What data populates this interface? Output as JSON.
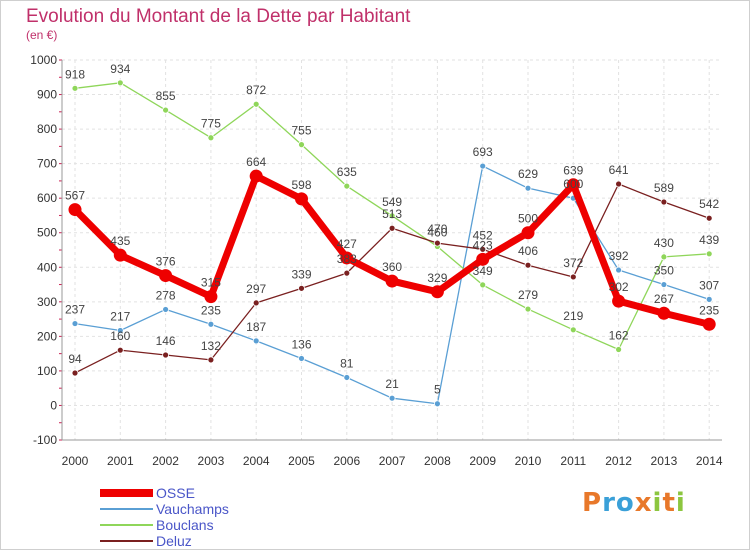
{
  "header": {
    "title": "Evolution du Montant de la Dette par Habitant",
    "unit": "(en €)"
  },
  "logo": {
    "text": "Proxiti",
    "letter_colors": [
      "#e8782a",
      "#3aa0d8",
      "#3aa0d8",
      "#e8782a",
      "#8cc63f",
      "#e8782a",
      "#8cc63f"
    ]
  },
  "chart_data": {
    "type": "line",
    "title": "Evolution du Montant de la Dette par Habitant",
    "ylabel": "(en €)",
    "xlabel": "",
    "x": [
      "2000",
      "2001",
      "2002",
      "2003",
      "2004",
      "2005",
      "2006",
      "2007",
      "2008",
      "2009",
      "2010",
      "2011",
      "2012",
      "2013",
      "2014"
    ],
    "ylim": [
      -100,
      1000
    ],
    "yticks": [
      -100,
      0,
      100,
      200,
      300,
      400,
      500,
      600,
      700,
      800,
      900,
      1000
    ],
    "grid": true,
    "legend": "bottom-left",
    "series": [
      {
        "name": "OSSE",
        "color": "#ee0000",
        "width": 7,
        "values": [
          567,
          435,
          376,
          315,
          664,
          598,
          427,
          360,
          329,
          423,
          500,
          639,
          302,
          267,
          235
        ]
      },
      {
        "name": "Vauchamps",
        "color": "#5a9fd4",
        "width": 1.3,
        "values": [
          237,
          217,
          278,
          235,
          187,
          136,
          81,
          21,
          5,
          693,
          629,
          600,
          392,
          350,
          307
        ]
      },
      {
        "name": "Bouclans",
        "color": "#8fd65a",
        "width": 1.3,
        "values": [
          918,
          934,
          855,
          775,
          872,
          755,
          635,
          549,
          460,
          349,
          279,
          219,
          162,
          430,
          439
        ]
      },
      {
        "name": "Deluz",
        "color": "#7a2020",
        "width": 1.3,
        "values": [
          94,
          160,
          146,
          132,
          297,
          339,
          383,
          513,
          470,
          452,
          406,
          372,
          641,
          589,
          542
        ]
      }
    ]
  }
}
